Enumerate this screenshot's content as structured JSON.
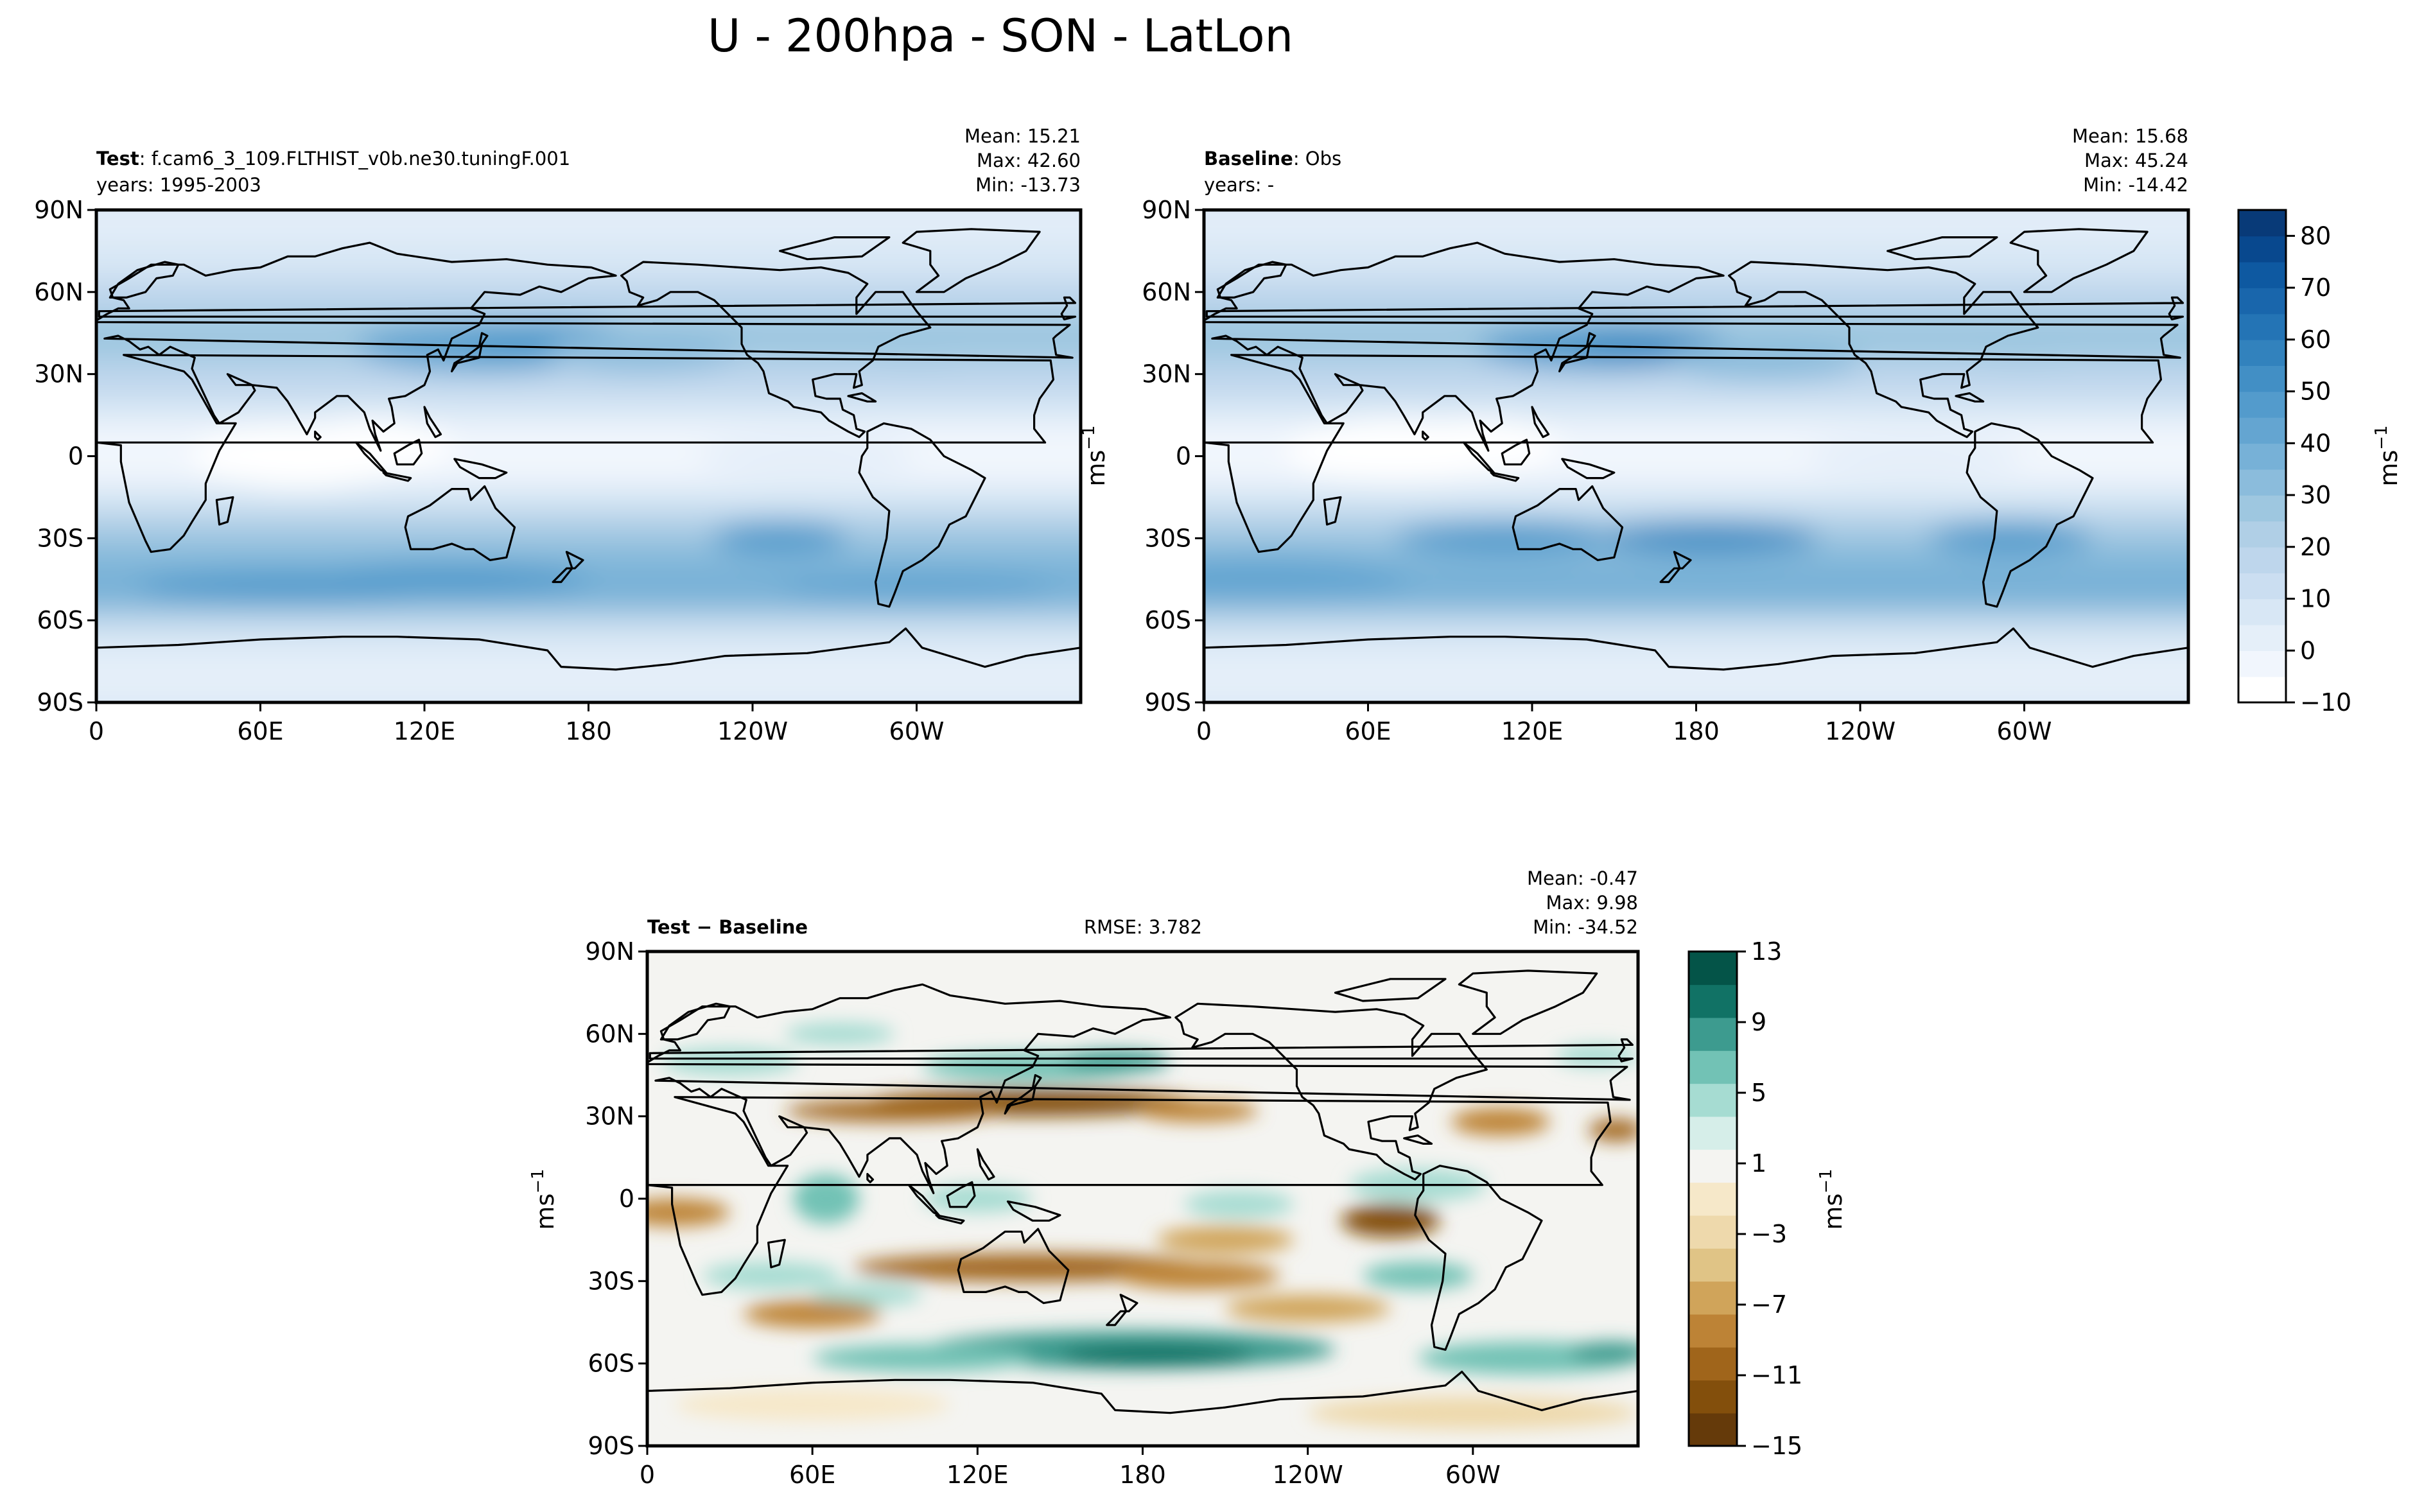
{
  "figure": {
    "title": "U - 200hpa - SON - LatLon"
  },
  "colors": {
    "land_line": "#000000",
    "blues": [
      "#ffffff",
      "#f1f6fd",
      "#e5eff9",
      "#d8e7f5",
      "#cbdef1",
      "#bed6ec",
      "#b0cfe6",
      "#9ec7e0",
      "#8bbcdc",
      "#77b1d7",
      "#64a5d1",
      "#539bcc",
      "#428fc5",
      "#3282bd",
      "#2474b5",
      "#1966ac",
      "#0e59a1",
      "#08488e",
      "#083a78"
    ],
    "diff": [
      "#653a0a",
      "#834f0c",
      "#a0651b",
      "#bd8336",
      "#d0a45a",
      "#e0c486",
      "#eed9ac",
      "#f6e8c9",
      "#f4f4f1",
      "#d6eee9",
      "#a6dcd2",
      "#72c2b5",
      "#3d9b8f",
      "#117265",
      "#045448"
    ]
  },
  "chart_data": [
    {
      "type": "heatmap",
      "panel": "test",
      "label_bold": "Test",
      "label_rest": ": f.cam6_3_109.FLTHIST_v0b.ne30.tuningF.001",
      "years": "years: 1995-2003",
      "stats": {
        "mean": "Mean: 15.21",
        "max": "Max: 42.60",
        "min": "Min: -13.73"
      },
      "x_ticks": [
        "0",
        "60E",
        "120E",
        "180",
        "120W",
        "60W"
      ],
      "x_tick_values": [
        0,
        60,
        120,
        180,
        240,
        300
      ],
      "x_range": [
        0,
        360
      ],
      "y_ticks": [
        "90N",
        "60N",
        "30N",
        "0",
        "30S",
        "60S",
        "90S"
      ],
      "y_tick_values": [
        90,
        60,
        30,
        0,
        -30,
        -60,
        -90
      ],
      "y_range": [
        -90,
        90
      ],
      "ylabel": "ms",
      "ylabel_sup": "−1",
      "field_summary": {
        "mean": 15.21,
        "max": 42.6,
        "min": -13.73
      }
    },
    {
      "type": "heatmap",
      "panel": "baseline",
      "label_bold": "Baseline",
      "label_rest": ": Obs",
      "years": "years: -",
      "stats": {
        "mean": "Mean: 15.68",
        "max": "Max: 45.24",
        "min": "Min: -14.42"
      },
      "x_ticks": [
        "0",
        "60E",
        "120E",
        "180",
        "120W",
        "60W"
      ],
      "x_tick_values": [
        0,
        60,
        120,
        180,
        240,
        300
      ],
      "x_range": [
        0,
        360
      ],
      "y_ticks": [
        "90N",
        "60N",
        "30N",
        "0",
        "30S",
        "60S",
        "90S"
      ],
      "y_tick_values": [
        90,
        60,
        30,
        0,
        -30,
        -60,
        -90
      ],
      "y_range": [
        -90,
        90
      ],
      "field_summary": {
        "mean": 15.68,
        "max": 45.24,
        "min": -14.42
      },
      "colorbar": {
        "ticks": [
          "80",
          "70",
          "60",
          "50",
          "40",
          "30",
          "20",
          "10",
          "0",
          "−10"
        ],
        "tick_values": [
          80,
          70,
          60,
          50,
          40,
          30,
          20,
          10,
          0,
          -10
        ],
        "range": [
          -10,
          85
        ],
        "label": "ms",
        "label_sup": "−1"
      }
    },
    {
      "type": "heatmap",
      "panel": "difference",
      "label": "Test − Baseline",
      "rmse": "RMSE: 3.782",
      "stats": {
        "mean": "Mean: -0.47",
        "max": "Max:  9.98",
        "min": "Min: -34.52"
      },
      "x_ticks": [
        "0",
        "60E",
        "120E",
        "180",
        "120W",
        "60W"
      ],
      "x_tick_values": [
        0,
        60,
        120,
        180,
        240,
        300
      ],
      "x_range": [
        0,
        360
      ],
      "y_ticks": [
        "90N",
        "60N",
        "30N",
        "0",
        "30S",
        "60S",
        "90S"
      ],
      "y_tick_values": [
        90,
        60,
        30,
        0,
        -30,
        -60,
        -90
      ],
      "y_range": [
        -90,
        90
      ],
      "ylabel": "ms",
      "ylabel_sup": "−1",
      "field_summary": {
        "mean": -0.47,
        "max": 9.98,
        "min": -34.52,
        "rmse": 3.782
      },
      "colorbar": {
        "ticks": [
          "13",
          "9",
          "5",
          "1",
          "−3",
          "−7",
          "−11",
          "−15"
        ],
        "tick_values": [
          13,
          9,
          5,
          1,
          -3,
          -7,
          -11,
          -15
        ],
        "range": [
          -15,
          13
        ],
        "label": "ms",
        "label_sup": "−1"
      }
    }
  ]
}
